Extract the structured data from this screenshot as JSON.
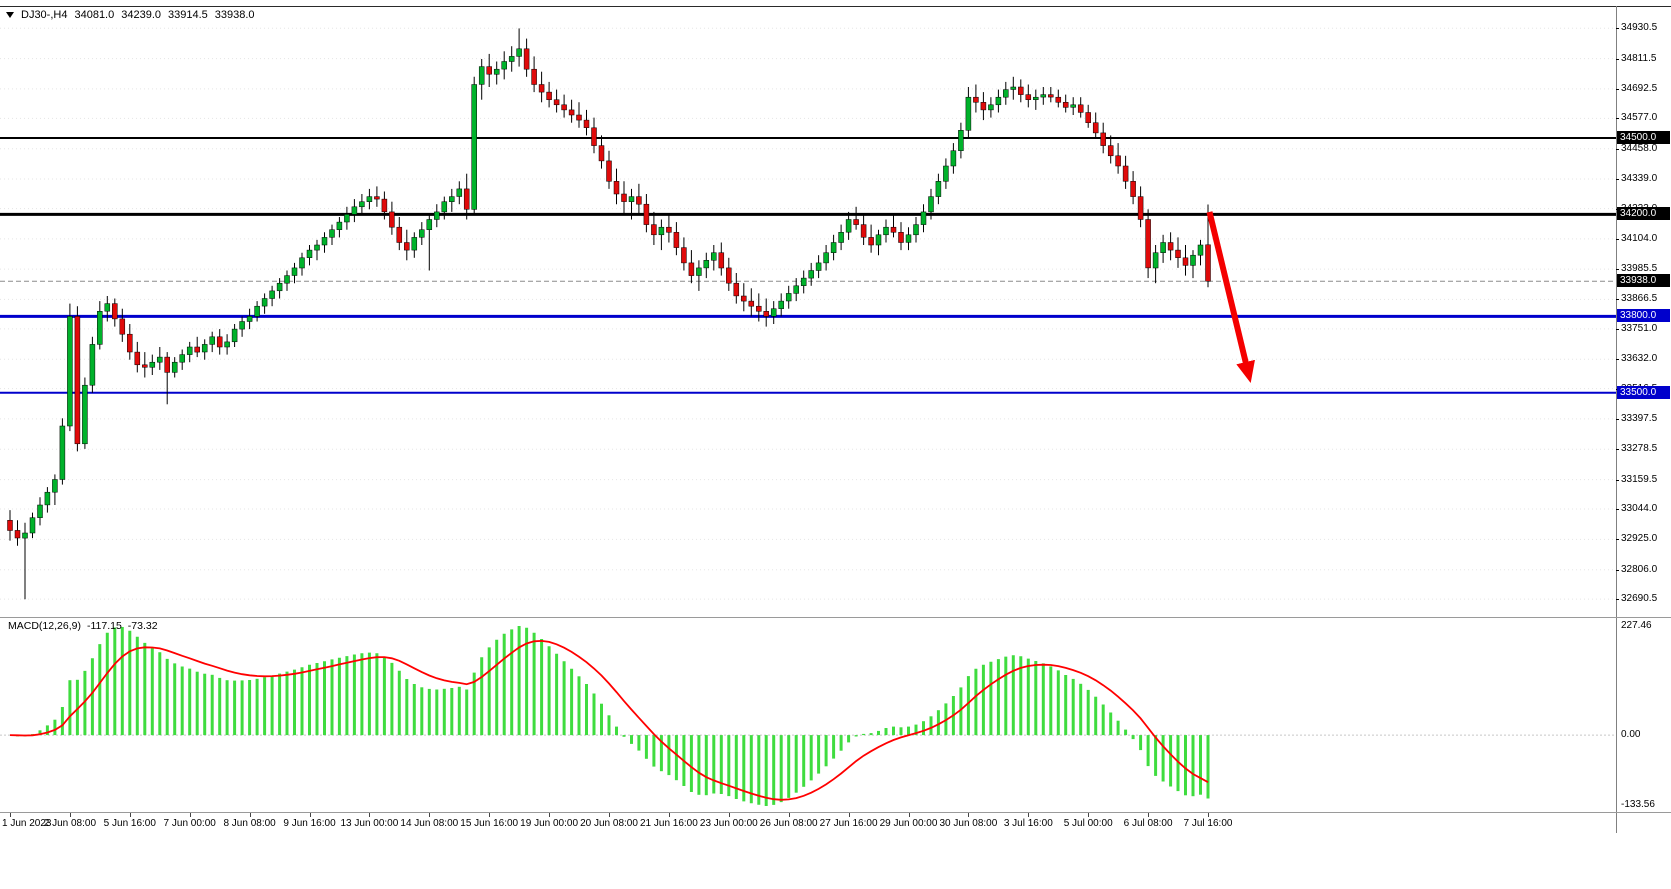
{
  "legend": {
    "symbol_period": "DJ30-,H4",
    "open": "34081.0",
    "high": "34239.0",
    "low": "33914.5",
    "close": "33938.0"
  },
  "macd": {
    "name": "MACD(12,26,9)",
    "value_main": "-117.15",
    "value_signal": "-73.32"
  },
  "overlays": {
    "levels": [
      {
        "price": 34500.0,
        "label": "34500.0",
        "line_color": "#000000",
        "line_width": 2,
        "badge_bg": "#000000",
        "badge_fg": "#ffffff"
      },
      {
        "price": 34200.0,
        "label": "34200.0",
        "line_color": "#000000",
        "line_width": 3,
        "badge_bg": "#000000",
        "badge_fg": "#ffffff"
      },
      {
        "price": 33800.0,
        "label": "33800.0",
        "line_color": "#0000CC",
        "line_width": 3,
        "badge_bg": "#0000CC",
        "badge_fg": "#ffffff"
      },
      {
        "price": 33500.0,
        "label": "33500.0",
        "line_color": "#0000CC",
        "line_width": 2,
        "badge_bg": "#0000CC",
        "badge_fg": "#ffffff"
      }
    ],
    "current_price": {
      "price": 33938.0,
      "label": "33938.0",
      "line_color": "#8c8c8c",
      "badge_bg": "#000000",
      "badge_fg": "#ffffff"
    },
    "annotation_arrow": {
      "from_bar": 160.2,
      "from_price": 34210,
      "to_bar": 165.2,
      "to_price": 33600,
      "color": "#F40000",
      "width": 6
    }
  },
  "chart_data": [
    {
      "type": "candlestick",
      "title": "DJ30-,H4",
      "timeframe": "H4",
      "x_labels": [
        "1 Jun 2023",
        "2 Jun 08:00",
        "5 Jun 16:00",
        "7 Jun 00:00",
        "8 Jun 08:00",
        "9 Jun 16:00",
        "13 Jun 00:00",
        "14 Jun 08:00",
        "15 Jun 16:00",
        "19 Jun 00:00",
        "20 Jun 08:00",
        "21 Jun 16:00",
        "23 Jun 00:00",
        "26 Jun 08:00",
        "27 Jun 16:00",
        "29 Jun 00:00",
        "30 Jun 08:00",
        "3 Jul 16:00",
        "5 Jul 00:00",
        "6 Jul 08:00",
        "7 Jul 16:00"
      ],
      "bars_per_x_label": 8,
      "y_axis": {
        "ticks": [
          34930.5,
          34811.5,
          34692.5,
          34577.0,
          34458.0,
          34339.0,
          34223.0,
          34104.0,
          33985.5,
          33866.5,
          33751.0,
          33632.0,
          33516.5,
          33397.5,
          33278.5,
          33159.5,
          33044.0,
          32925.0,
          32806.0,
          32690.5
        ],
        "top_price": 35010,
        "bottom_price": 32640
      },
      "colors": {
        "up": "#00B22B",
        "down": "#E00A0A",
        "wick": "#000000"
      },
      "grid": "dotted-horizontal",
      "candles": [
        [
          33000,
          33040,
          32920,
          32960
        ],
        [
          32960,
          33000,
          32900,
          32930
        ],
        [
          32930,
          32990,
          32690,
          32950
        ],
        [
          32950,
          33030,
          32930,
          33010
        ],
        [
          33010,
          33090,
          32980,
          33060
        ],
        [
          33060,
          33130,
          33030,
          33110
        ],
        [
          33110,
          33180,
          33060,
          33160
        ],
        [
          33160,
          33400,
          33140,
          33370
        ],
        [
          33370,
          33850,
          33350,
          33800
        ],
        [
          33800,
          33840,
          33270,
          33300
        ],
        [
          33300,
          33560,
          33280,
          33530
        ],
        [
          33530,
          33720,
          33500,
          33690
        ],
        [
          33690,
          33860,
          33670,
          33820
        ],
        [
          33820,
          33880,
          33780,
          33850
        ],
        [
          33850,
          33870,
          33760,
          33790
        ],
        [
          33790,
          33830,
          33700,
          33730
        ],
        [
          33730,
          33770,
          33630,
          33660
        ],
        [
          33660,
          33700,
          33580,
          33610
        ],
        [
          33610,
          33660,
          33560,
          33600
        ],
        [
          33600,
          33650,
          33570,
          33620
        ],
        [
          33620,
          33680,
          33590,
          33640
        ],
        [
          33640,
          33660,
          33455,
          33580
        ],
        [
          33580,
          33640,
          33560,
          33620
        ],
        [
          33620,
          33670,
          33590,
          33650
        ],
        [
          33650,
          33700,
          33620,
          33680
        ],
        [
          33680,
          33720,
          33640,
          33660
        ],
        [
          33660,
          33710,
          33630,
          33690
        ],
        [
          33690,
          33740,
          33660,
          33720
        ],
        [
          33720,
          33750,
          33650,
          33680
        ],
        [
          33680,
          33730,
          33650,
          33700
        ],
        [
          33700,
          33770,
          33680,
          33750
        ],
        [
          33750,
          33800,
          33720,
          33780
        ],
        [
          33780,
          33830,
          33750,
          33800
        ],
        [
          33800,
          33860,
          33780,
          33840
        ],
        [
          33840,
          33890,
          33810,
          33870
        ],
        [
          33870,
          33920,
          33840,
          33900
        ],
        [
          33900,
          33950,
          33870,
          33930
        ],
        [
          33930,
          33980,
          33900,
          33960
        ],
        [
          33960,
          34010,
          33930,
          33990
        ],
        [
          33990,
          34050,
          33960,
          34030
        ],
        [
          34030,
          34080,
          34000,
          34060
        ],
        [
          34060,
          34100,
          34020,
          34080
        ],
        [
          34080,
          34130,
          34050,
          34110
        ],
        [
          34110,
          34160,
          34080,
          34140
        ],
        [
          34140,
          34190,
          34110,
          34170
        ],
        [
          34170,
          34230,
          34140,
          34200
        ],
        [
          34200,
          34260,
          34170,
          34230
        ],
        [
          34230,
          34280,
          34200,
          34250
        ],
        [
          34250,
          34300,
          34220,
          34270
        ],
        [
          34270,
          34310,
          34230,
          34260
        ],
        [
          34260,
          34290,
          34180,
          34210
        ],
        [
          34210,
          34250,
          34120,
          34150
        ],
        [
          34150,
          34190,
          34060,
          34090
        ],
        [
          34090,
          34140,
          34020,
          34060
        ],
        [
          34060,
          34130,
          34030,
          34110
        ],
        [
          34110,
          34170,
          34080,
          34140
        ],
        [
          34140,
          34200,
          33980,
          34180
        ],
        [
          34180,
          34240,
          34150,
          34210
        ],
        [
          34210,
          34270,
          34180,
          34250
        ],
        [
          34250,
          34300,
          34210,
          34270
        ],
        [
          34270,
          34330,
          34240,
          34300
        ],
        [
          34300,
          34360,
          34180,
          34220
        ],
        [
          34220,
          34740,
          34200,
          34710
        ],
        [
          34710,
          34810,
          34650,
          34780
        ],
        [
          34780,
          34830,
          34700,
          34750
        ],
        [
          34750,
          34800,
          34710,
          34770
        ],
        [
          34770,
          34840,
          34730,
          34800
        ],
        [
          34800,
          34860,
          34760,
          34820
        ],
        [
          34820,
          34930,
          34780,
          34850
        ],
        [
          34850,
          34890,
          34740,
          34770
        ],
        [
          34770,
          34820,
          34680,
          34710
        ],
        [
          34710,
          34760,
          34640,
          34680
        ],
        [
          34680,
          34720,
          34620,
          34650
        ],
        [
          34650,
          34690,
          34600,
          34630
        ],
        [
          34630,
          34670,
          34580,
          34610
        ],
        [
          34610,
          34650,
          34560,
          34590
        ],
        [
          34590,
          34640,
          34540,
          34570
        ],
        [
          34570,
          34610,
          34510,
          34540
        ],
        [
          34540,
          34580,
          34440,
          34470
        ],
        [
          34470,
          34510,
          34380,
          34410
        ],
        [
          34410,
          34450,
          34300,
          34330
        ],
        [
          34330,
          34380,
          34240,
          34280
        ],
        [
          34280,
          34330,
          34200,
          34250
        ],
        [
          34250,
          34300,
          34180,
          34270
        ],
        [
          34270,
          34320,
          34200,
          34240
        ],
        [
          34240,
          34280,
          34130,
          34160
        ],
        [
          34160,
          34210,
          34080,
          34120
        ],
        [
          34120,
          34180,
          34060,
          34150
        ],
        [
          34150,
          34200,
          34090,
          34130
        ],
        [
          34130,
          34170,
          34040,
          34070
        ],
        [
          34070,
          34110,
          33980,
          34010
        ],
        [
          34010,
          34060,
          33930,
          33960
        ],
        [
          33960,
          34020,
          33900,
          33990
        ],
        [
          33990,
          34050,
          33950,
          34020
        ],
        [
          34020,
          34080,
          33980,
          34050
        ],
        [
          34050,
          34090,
          33960,
          33990
        ],
        [
          33990,
          34030,
          33900,
          33930
        ],
        [
          33930,
          33970,
          33850,
          33880
        ],
        [
          33880,
          33930,
          33820,
          33860
        ],
        [
          33860,
          33910,
          33800,
          33840
        ],
        [
          33840,
          33890,
          33780,
          33820
        ],
        [
          33820,
          33870,
          33760,
          33800
        ],
        [
          33800,
          33860,
          33770,
          33830
        ],
        [
          33830,
          33890,
          33800,
          33860
        ],
        [
          33860,
          33920,
          33830,
          33890
        ],
        [
          33890,
          33950,
          33860,
          33920
        ],
        [
          33920,
          33980,
          33890,
          33950
        ],
        [
          33950,
          34010,
          33920,
          33980
        ],
        [
          33980,
          34040,
          33950,
          34010
        ],
        [
          34010,
          34080,
          33980,
          34050
        ],
        [
          34050,
          34120,
          34020,
          34090
        ],
        [
          34090,
          34160,
          34060,
          34130
        ],
        [
          34130,
          34210,
          34100,
          34180
        ],
        [
          34180,
          34230,
          34140,
          34160
        ],
        [
          34160,
          34200,
          34080,
          34110
        ],
        [
          34110,
          34160,
          34050,
          34080
        ],
        [
          34080,
          34140,
          34040,
          34120
        ],
        [
          34120,
          34180,
          34090,
          34150
        ],
        [
          34150,
          34200,
          34110,
          34130
        ],
        [
          34130,
          34170,
          34060,
          34090
        ],
        [
          34090,
          34150,
          34060,
          34120
        ],
        [
          34120,
          34190,
          34090,
          34160
        ],
        [
          34160,
          34240,
          34130,
          34210
        ],
        [
          34210,
          34300,
          34180,
          34270
        ],
        [
          34270,
          34360,
          34240,
          34330
        ],
        [
          34330,
          34420,
          34300,
          34390
        ],
        [
          34390,
          34480,
          34360,
          34450
        ],
        [
          34450,
          34560,
          34420,
          34530
        ],
        [
          34530,
          34700,
          34500,
          34660
        ],
        [
          34660,
          34710,
          34600,
          34640
        ],
        [
          34640,
          34680,
          34570,
          34610
        ],
        [
          34610,
          34660,
          34580,
          34630
        ],
        [
          34630,
          34690,
          34600,
          34660
        ],
        [
          34660,
          34720,
          34630,
          34690
        ],
        [
          34690,
          34740,
          34650,
          34700
        ],
        [
          34700,
          34730,
          34640,
          34670
        ],
        [
          34670,
          34710,
          34620,
          34650
        ],
        [
          34650,
          34690,
          34610,
          34660
        ],
        [
          34660,
          34700,
          34630,
          34670
        ],
        [
          34670,
          34700,
          34640,
          34660
        ],
        [
          34660,
          34690,
          34620,
          34640
        ],
        [
          34640,
          34670,
          34600,
          34620
        ],
        [
          34620,
          34660,
          34590,
          34630
        ],
        [
          34630,
          34660,
          34580,
          34600
        ],
        [
          34600,
          34630,
          34540,
          34560
        ],
        [
          34560,
          34600,
          34500,
          34520
        ],
        [
          34520,
          34560,
          34440,
          34470
        ],
        [
          34470,
          34510,
          34400,
          34430
        ],
        [
          34430,
          34480,
          34360,
          34390
        ],
        [
          34390,
          34430,
          34300,
          34330
        ],
        [
          34330,
          34370,
          34240,
          34270
        ],
        [
          34270,
          34310,
          34150,
          34180
        ],
        [
          34180,
          34220,
          33950,
          33990
        ],
        [
          33990,
          34080,
          33930,
          34050
        ],
        [
          34050,
          34120,
          34010,
          34090
        ],
        [
          34090,
          34130,
          34020,
          34060
        ],
        [
          34060,
          34110,
          33990,
          34030
        ],
        [
          34030,
          34080,
          33960,
          34000
        ],
        [
          34000,
          34060,
          33950,
          34040
        ],
        [
          34040,
          34100,
          34000,
          34080
        ],
        [
          34081,
          34239,
          33914.5,
          33938
        ]
      ]
    },
    {
      "type": "bar",
      "title": "MACD(12,26,9)",
      "note": "histogram = EMA12-EMA26 of closes of the candlestick series; signal = EMA9 of histogram",
      "last_values": {
        "main": -117.15,
        "signal": -73.32
      },
      "y_ticks": [
        227.46,
        0.0,
        -133.56
      ],
      "y_tick_labels": [
        "227.46",
        "0.00",
        "-133.56"
      ],
      "colors": {
        "histogram": "#3FDC3F",
        "signal": "#FF0000",
        "zero_line": "#c8c8c8"
      }
    }
  ]
}
